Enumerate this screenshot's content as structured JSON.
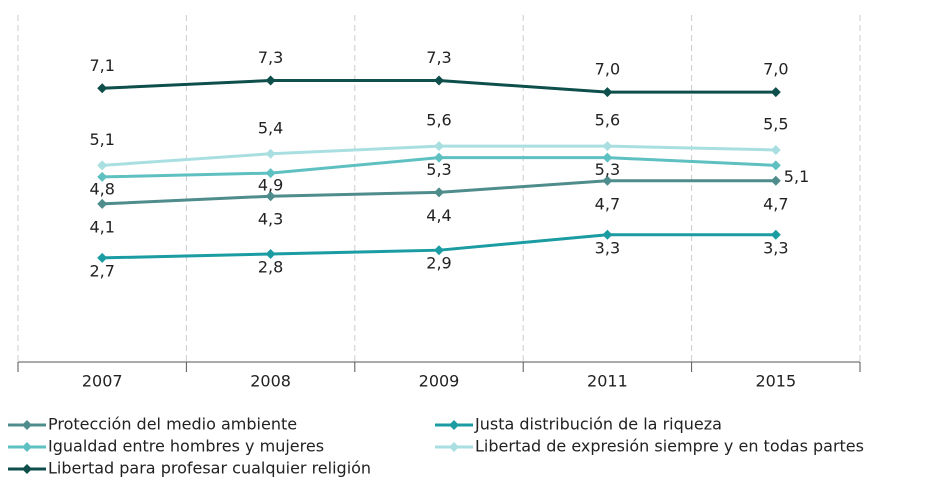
{
  "chart_data": {
    "type": "line",
    "categories": [
      "2007",
      "2008",
      "2009",
      "2011",
      "2015"
    ],
    "ylim": [
      0,
      9
    ],
    "series": [
      {
        "name": "Protección del medio ambiente",
        "color": "#4f8c8c",
        "values": [
          4.1,
          4.3,
          4.4,
          4.7,
          4.7
        ],
        "value_labels": [
          "4,1",
          "4,3",
          "4,4",
          "4,7",
          "4,7"
        ]
      },
      {
        "name": "Justa distribución de la riqueza",
        "color": "#1a9ca2",
        "values": [
          2.7,
          2.8,
          2.9,
          3.3,
          3.3
        ],
        "value_labels": [
          "2,7",
          "2,8",
          "2,9",
          "3,3",
          "3,3"
        ]
      },
      {
        "name": "Igualdad entre hombres y mujeres",
        "color": "#5fc0c2",
        "values": [
          4.8,
          4.9,
          5.3,
          5.3,
          5.1
        ],
        "value_labels": [
          "4,8",
          "4,9",
          "5,3",
          "5,3",
          "5,1"
        ]
      },
      {
        "name": "Libertad de expresión siempre y en todas partes",
        "color": "#aadfe1",
        "values": [
          5.1,
          5.4,
          5.6,
          5.6,
          5.5
        ],
        "value_labels": [
          "5,1",
          "5,4",
          "5,6",
          "5,6",
          "5,5"
        ]
      },
      {
        "name": "Libertad para profesar cualquier religión",
        "color": "#0e4f4b",
        "values": [
          7.1,
          7.3,
          7.3,
          7.0,
          7.0
        ],
        "value_labels": [
          "7,1",
          "7,3",
          "7,3",
          "7,0",
          "7,0"
        ]
      }
    ]
  }
}
